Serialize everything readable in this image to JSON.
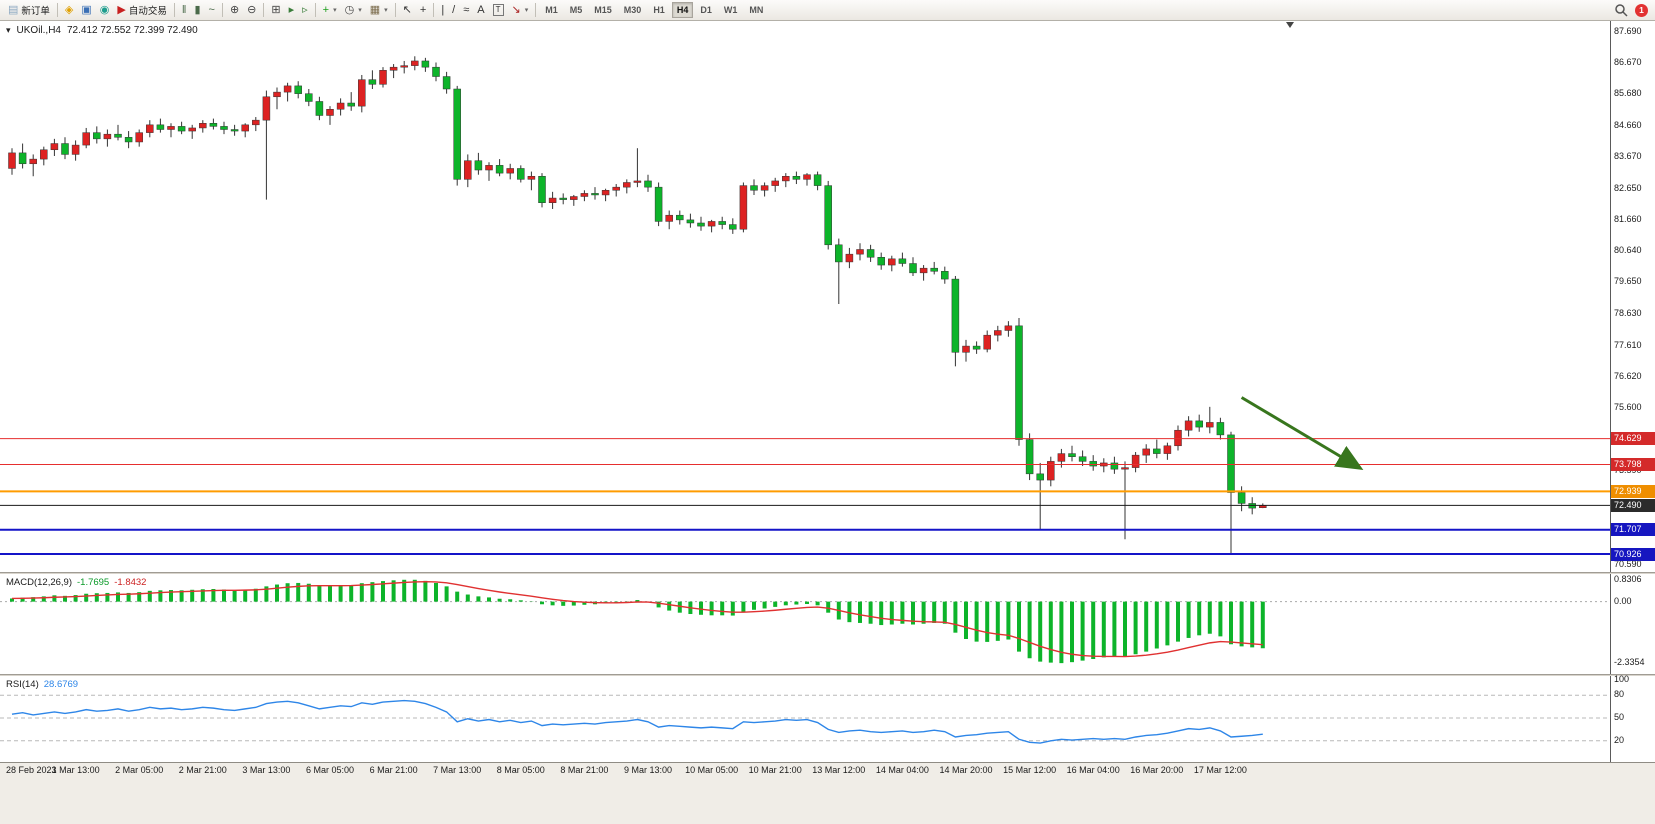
{
  "toolbar": {
    "caret_glyph": "▾",
    "notification_badge": "1",
    "groups": [
      {
        "items": [
          {
            "name": "new-order-button",
            "glyph": "▤",
            "glyph_color": "#8aa6c0",
            "label": "新订单"
          }
        ]
      },
      {
        "items": [
          {
            "name": "market-watch-icon",
            "glyph": "◈",
            "glyph_color": "#e0a000"
          },
          {
            "name": "metaeditor-icon",
            "glyph": "▣",
            "glyph_color": "#3b6fb5"
          },
          {
            "name": "signals-icon",
            "glyph": "◉",
            "glyph_color": "#1f9e8e"
          },
          {
            "name": "autotrading-button",
            "glyph": "▶",
            "glyph_color": "#c82020",
            "label": "自动交易"
          }
        ]
      },
      {
        "items": [
          {
            "name": "bar-chart-icon",
            "glyph": "‖",
            "glyph_color": "#4a6a4a"
          },
          {
            "name": "candlestick-chart-icon",
            "glyph": "▮",
            "glyph_color": "#4a6a4a"
          },
          {
            "name": "line-chart-icon",
            "glyph": "~",
            "glyph_color": "#4a6a4a"
          }
        ]
      },
      {
        "items": [
          {
            "name": "zoom-in-icon",
            "glyph": "⊕",
            "glyph_color": "#444444"
          },
          {
            "name": "zoom-out-icon",
            "glyph": "⊖",
            "glyph_color": "#444444"
          }
        ]
      },
      {
        "items": [
          {
            "name": "tile-windows-icon",
            "glyph": "⊞",
            "glyph_color": "#444444"
          },
          {
            "name": "auto-scroll-icon",
            "glyph": "▸",
            "glyph_color": "#3a7d3a"
          },
          {
            "name": "chart-shift-icon",
            "glyph": "▹",
            "glyph_color": "#3a7d3a"
          }
        ]
      },
      {
        "items": [
          {
            "name": "add-indicator-dropdown",
            "glyph": "+",
            "glyph_color": "#1a9e1a",
            "caret": true
          },
          {
            "name": "periods-dropdown",
            "glyph": "◷",
            "glyph_color": "#444444",
            "caret": true
          },
          {
            "name": "templates-dropdown",
            "glyph": "▦",
            "glyph_color": "#7a6a4a",
            "caret": true
          }
        ]
      },
      {
        "items": [
          {
            "name": "cursor-icon",
            "glyph": "↖",
            "glyph_color": "#333333"
          },
          {
            "name": "crosshair-icon",
            "glyph": "+",
            "glyph_color": "#333333"
          }
        ]
      },
      {
        "items": [
          {
            "name": "vertical-line-icon",
            "glyph": "|",
            "glyph_color": "#333333"
          },
          {
            "name": "trendline-icon",
            "glyph": "/",
            "glyph_color": "#333333"
          },
          {
            "name": "fibonacci-icon",
            "glyph": "≈",
            "glyph_color": "#333333"
          },
          {
            "name": "text-icon",
            "glyph": "A",
            "glyph_color": "#333333"
          },
          {
            "name": "label-icon",
            "glyph": "T",
            "glyph_color": "#333333",
            "boxed": true
          },
          {
            "name": "arrows-dropdown",
            "glyph": "↘",
            "glyph_color": "#aa2222",
            "caret": true
          }
        ]
      }
    ],
    "timeframes": {
      "items": [
        "M1",
        "M5",
        "M15",
        "M30",
        "H1",
        "H4",
        "D1",
        "W1",
        "MN"
      ],
      "active": "H4"
    }
  },
  "header": {
    "one_click_glyph": "▾",
    "symbol_period": "UKOil.,H4",
    "ohlc": "72.412 72.552 72.399 72.490"
  },
  "chart_data": {
    "type": "candlestick",
    "symbol": "UKOil",
    "period": "H4",
    "colors": {
      "up": "#dd2222",
      "down": "#0db42a",
      "wick": "#333333",
      "border": "#333333"
    },
    "y_axis": {
      "min": 70.35,
      "max": 88.0,
      "labels": [
        87.69,
        86.67,
        85.68,
        84.66,
        83.67,
        82.65,
        81.66,
        80.64,
        79.65,
        78.63,
        77.61,
        76.62,
        75.6,
        73.59,
        71.58,
        70.59
      ]
    },
    "price_lines": [
      {
        "value": 74.629,
        "color": "#e62e2e",
        "width": 1,
        "tag": "#d42a2a"
      },
      {
        "value": 73.798,
        "color": "#e62e2e",
        "width": 1,
        "tag": "#d42a2a"
      },
      {
        "value": 72.939,
        "color": "#ff9c00",
        "width": 2,
        "tag": "#ef8e00"
      },
      {
        "value": 72.49,
        "color": "#1a1a1a",
        "width": 1,
        "tag": "#2b2b2b"
      },
      {
        "value": 71.707,
        "color": "#1414c8",
        "width": 2,
        "tag": "#1616c0"
      },
      {
        "value": 70.926,
        "color": "#1414c8",
        "width": 2,
        "tag": "#1616c0"
      }
    ],
    "annotation": {
      "type": "arrow",
      "color": "#38761d",
      "width": 3,
      "from": {
        "index": 116,
        "price": 75.95
      },
      "to": {
        "index": 127,
        "price": 73.72
      }
    },
    "x_labels": [
      {
        "i": 0,
        "t": "28 Feb 2023"
      },
      {
        "i": 6,
        "t": "1 Mar 13:00"
      },
      {
        "i": 12,
        "t": "2 Mar 05:00"
      },
      {
        "i": 18,
        "t": "2 Mar 21:00"
      },
      {
        "i": 24,
        "t": "3 Mar 13:00"
      },
      {
        "i": 30,
        "t": "6 Mar 05:00"
      },
      {
        "i": 36,
        "t": "6 Mar 21:00"
      },
      {
        "i": 42,
        "t": "7 Mar 13:00"
      },
      {
        "i": 48,
        "t": "8 Mar 05:00"
      },
      {
        "i": 54,
        "t": "8 Mar 21:00"
      },
      {
        "i": 60,
        "t": "9 Mar 13:00"
      },
      {
        "i": 66,
        "t": "10 Mar 05:00"
      },
      {
        "i": 72,
        "t": "10 Mar 21:00"
      },
      {
        "i": 78,
        "t": "13 Mar 12:00"
      },
      {
        "i": 84,
        "t": "14 Mar 04:00"
      },
      {
        "i": 90,
        "t": "14 Mar 20:00"
      },
      {
        "i": 96,
        "t": "15 Mar 12:00"
      },
      {
        "i": 102,
        "t": "16 Mar 04:00"
      },
      {
        "i": 108,
        "t": "16 Mar 20:00"
      },
      {
        "i": 114,
        "t": "17 Mar 12:00"
      }
    ],
    "candles": [
      [
        83.3,
        83.95,
        83.1,
        83.8
      ],
      [
        83.8,
        84.1,
        83.3,
        83.45
      ],
      [
        83.45,
        83.75,
        83.05,
        83.6
      ],
      [
        83.6,
        84.0,
        83.4,
        83.9
      ],
      [
        83.9,
        84.25,
        83.7,
        84.1
      ],
      [
        84.1,
        84.3,
        83.6,
        83.75
      ],
      [
        83.75,
        84.2,
        83.55,
        84.05
      ],
      [
        84.05,
        84.6,
        83.95,
        84.45
      ],
      [
        84.45,
        84.65,
        84.1,
        84.25
      ],
      [
        84.25,
        84.55,
        84.0,
        84.4
      ],
      [
        84.4,
        84.7,
        84.2,
        84.3
      ],
      [
        84.3,
        84.5,
        83.95,
        84.15
      ],
      [
        84.15,
        84.55,
        84.0,
        84.45
      ],
      [
        84.45,
        84.85,
        84.3,
        84.7
      ],
      [
        84.7,
        84.9,
        84.45,
        84.55
      ],
      [
        84.55,
        84.75,
        84.3,
        84.65
      ],
      [
        84.65,
        84.8,
        84.4,
        84.5
      ],
      [
        84.5,
        84.7,
        84.25,
        84.6
      ],
      [
        84.6,
        84.85,
        84.45,
        84.75
      ],
      [
        84.75,
        84.9,
        84.55,
        84.65
      ],
      [
        84.65,
        84.8,
        84.4,
        84.55
      ],
      [
        84.55,
        84.7,
        84.35,
        84.5
      ],
      [
        84.5,
        84.75,
        84.3,
        84.7
      ],
      [
        84.7,
        84.95,
        84.5,
        84.85
      ],
      [
        84.85,
        85.8,
        82.3,
        85.6
      ],
      [
        85.6,
        85.9,
        85.2,
        85.75
      ],
      [
        85.75,
        86.05,
        85.45,
        85.95
      ],
      [
        85.95,
        86.1,
        85.55,
        85.7
      ],
      [
        85.7,
        85.85,
        85.3,
        85.45
      ],
      [
        85.45,
        85.6,
        84.85,
        85.0
      ],
      [
        85.0,
        85.3,
        84.7,
        85.2
      ],
      [
        85.2,
        85.55,
        85.0,
        85.4
      ],
      [
        85.4,
        85.75,
        85.15,
        85.3
      ],
      [
        85.3,
        86.3,
        85.1,
        86.15
      ],
      [
        86.15,
        86.45,
        85.85,
        86.0
      ],
      [
        86.0,
        86.55,
        85.9,
        86.45
      ],
      [
        86.45,
        86.65,
        86.2,
        86.55
      ],
      [
        86.55,
        86.75,
        86.35,
        86.6
      ],
      [
        86.6,
        86.9,
        86.45,
        86.75
      ],
      [
        86.75,
        86.85,
        86.4,
        86.55
      ],
      [
        86.55,
        86.7,
        86.1,
        86.25
      ],
      [
        86.25,
        86.4,
        85.7,
        85.85
      ],
      [
        85.85,
        85.95,
        82.75,
        82.95
      ],
      [
        82.95,
        83.75,
        82.7,
        83.55
      ],
      [
        83.55,
        83.8,
        83.1,
        83.25
      ],
      [
        83.25,
        83.5,
        82.9,
        83.4
      ],
      [
        83.4,
        83.6,
        83.05,
        83.15
      ],
      [
        83.15,
        83.45,
        82.95,
        83.3
      ],
      [
        83.3,
        83.4,
        82.85,
        82.95
      ],
      [
        82.95,
        83.2,
        82.6,
        83.05
      ],
      [
        83.05,
        83.15,
        82.05,
        82.2
      ],
      [
        82.2,
        82.55,
        82.0,
        82.35
      ],
      [
        82.35,
        82.5,
        82.15,
        82.3
      ],
      [
        82.3,
        82.45,
        82.1,
        82.4
      ],
      [
        82.4,
        82.6,
        82.25,
        82.5
      ],
      [
        82.5,
        82.7,
        82.3,
        82.45
      ],
      [
        82.45,
        82.65,
        82.25,
        82.6
      ],
      [
        82.6,
        82.8,
        82.4,
        82.7
      ],
      [
        82.7,
        82.95,
        82.5,
        82.85
      ],
      [
        82.85,
        83.95,
        82.7,
        82.9
      ],
      [
        82.9,
        83.1,
        82.55,
        82.7
      ],
      [
        82.7,
        82.85,
        81.45,
        81.6
      ],
      [
        81.6,
        81.95,
        81.35,
        81.8
      ],
      [
        81.8,
        81.95,
        81.5,
        81.65
      ],
      [
        81.65,
        81.85,
        81.4,
        81.55
      ],
      [
        81.55,
        81.75,
        81.3,
        81.45
      ],
      [
        81.45,
        81.65,
        81.25,
        81.6
      ],
      [
        81.6,
        81.75,
        81.35,
        81.5
      ],
      [
        81.5,
        81.7,
        81.2,
        81.35
      ],
      [
        81.35,
        82.85,
        81.25,
        82.75
      ],
      [
        82.75,
        82.95,
        82.45,
        82.6
      ],
      [
        82.6,
        82.85,
        82.4,
        82.75
      ],
      [
        82.75,
        83.0,
        82.55,
        82.9
      ],
      [
        82.9,
        83.15,
        82.7,
        83.05
      ],
      [
        83.05,
        83.2,
        82.8,
        82.95
      ],
      [
        82.95,
        83.15,
        82.75,
        83.1
      ],
      [
        83.1,
        83.2,
        82.6,
        82.75
      ],
      [
        82.75,
        82.9,
        80.7,
        80.85
      ],
      [
        80.85,
        81.05,
        78.95,
        80.3
      ],
      [
        80.3,
        80.75,
        80.1,
        80.55
      ],
      [
        80.55,
        80.9,
        80.35,
        80.7
      ],
      [
        80.7,
        80.85,
        80.3,
        80.45
      ],
      [
        80.45,
        80.6,
        80.05,
        80.2
      ],
      [
        80.2,
        80.5,
        80.0,
        80.4
      ],
      [
        80.4,
        80.6,
        80.15,
        80.25
      ],
      [
        80.25,
        80.45,
        79.85,
        79.95
      ],
      [
        79.95,
        80.2,
        79.7,
        80.1
      ],
      [
        80.1,
        80.3,
        79.9,
        80.0
      ],
      [
        80.0,
        80.15,
        79.6,
        79.75
      ],
      [
        79.75,
        79.85,
        76.95,
        77.4
      ],
      [
        77.4,
        77.8,
        77.1,
        77.6
      ],
      [
        77.6,
        77.75,
        77.35,
        77.5
      ],
      [
        77.5,
        78.1,
        77.4,
        77.95
      ],
      [
        77.95,
        78.25,
        77.75,
        78.1
      ],
      [
        78.1,
        78.4,
        77.9,
        78.25
      ],
      [
        78.25,
        78.5,
        74.4,
        74.6
      ],
      [
        74.6,
        74.8,
        73.3,
        73.5
      ],
      [
        73.5,
        73.85,
        71.7,
        73.3
      ],
      [
        73.3,
        74.05,
        73.1,
        73.9
      ],
      [
        73.9,
        74.3,
        73.7,
        74.15
      ],
      [
        74.15,
        74.4,
        73.9,
        74.05
      ],
      [
        74.05,
        74.25,
        73.75,
        73.9
      ],
      [
        73.9,
        74.1,
        73.6,
        73.75
      ],
      [
        73.75,
        74.0,
        73.55,
        73.85
      ],
      [
        73.85,
        74.05,
        73.5,
        73.65
      ],
      [
        73.65,
        73.9,
        71.4,
        73.7
      ],
      [
        73.7,
        74.2,
        73.55,
        74.1
      ],
      [
        74.1,
        74.45,
        73.85,
        74.3
      ],
      [
        74.3,
        74.6,
        74.0,
        74.15
      ],
      [
        74.15,
        74.5,
        73.95,
        74.4
      ],
      [
        74.4,
        75.05,
        74.25,
        74.9
      ],
      [
        74.9,
        75.35,
        74.7,
        75.2
      ],
      [
        75.2,
        75.4,
        74.85,
        75.0
      ],
      [
        75.0,
        75.65,
        74.8,
        75.15
      ],
      [
        75.15,
        75.3,
        74.6,
        74.75
      ],
      [
        74.75,
        74.85,
        70.93,
        72.9
      ],
      [
        72.9,
        73.1,
        72.3,
        72.55
      ],
      [
        72.55,
        72.75,
        72.2,
        72.4
      ],
      [
        72.412,
        72.552,
        72.399,
        72.49
      ]
    ]
  },
  "macd": {
    "label": "MACD(12,26,9)",
    "main_value": "-1.7695",
    "signal_value": "-1.8432",
    "range": [
      -2.75,
      1.05
    ],
    "scale_labels": [
      {
        "text": "0.8306",
        "value": 0.8306
      },
      {
        "text": "0.00",
        "value": 0
      },
      {
        "text": "-2.3354",
        "value": -2.3354
      }
    ],
    "colors": {
      "histogram": "#0db42a",
      "signal": "#e03131"
    },
    "histogram": [
      0.12,
      0.15,
      0.17,
      0.2,
      0.24,
      0.22,
      0.25,
      0.3,
      0.32,
      0.33,
      0.35,
      0.33,
      0.36,
      0.41,
      0.43,
      0.44,
      0.43,
      0.45,
      0.47,
      0.48,
      0.46,
      0.44,
      0.46,
      0.49,
      0.58,
      0.65,
      0.7,
      0.71,
      0.68,
      0.63,
      0.6,
      0.61,
      0.63,
      0.7,
      0.74,
      0.78,
      0.81,
      0.83,
      0.8306,
      0.79,
      0.71,
      0.58,
      0.38,
      0.27,
      0.2,
      0.16,
      0.11,
      0.09,
      0.05,
      0.01,
      -0.1,
      -0.14,
      -0.16,
      -0.15,
      -0.12,
      -0.1,
      -0.07,
      -0.04,
      0.01,
      0.06,
      -0.03,
      -0.22,
      -0.34,
      -0.42,
      -0.47,
      -0.5,
      -0.52,
      -0.52,
      -0.53,
      -0.4,
      -0.31,
      -0.26,
      -0.2,
      -0.14,
      -0.11,
      -0.09,
      -0.14,
      -0.42,
      -0.68,
      -0.78,
      -0.81,
      -0.84,
      -0.89,
      -0.87,
      -0.84,
      -0.87,
      -0.84,
      -0.81,
      -0.84,
      -1.18,
      -1.42,
      -1.52,
      -1.53,
      -1.49,
      -1.44,
      -1.9,
      -2.15,
      -2.28,
      -2.32,
      -2.3354,
      -2.3,
      -2.24,
      -2.18,
      -2.12,
      -2.08,
      -2.1,
      -2.0,
      -1.9,
      -1.78,
      -1.66,
      -1.52,
      -1.38,
      -1.28,
      -1.22,
      -1.32,
      -1.62,
      -1.7,
      -1.74,
      -1.7695
    ]
  },
  "rsi": {
    "label": "RSI(14)",
    "value": "28.6769",
    "color": "#2e86e8",
    "range": [
      0,
      100
    ],
    "levels": [
      80,
      50,
      20
    ],
    "scale_labels": [
      {
        "text": "100",
        "value": 100
      },
      {
        "text": "80",
        "value": 80
      },
      {
        "text": "50",
        "value": 50
      },
      {
        "text": "20",
        "value": 20
      }
    ],
    "values": [
      55,
      57,
      54,
      56,
      58,
      56,
      58,
      61,
      59,
      60,
      62,
      59,
      61,
      64,
      62,
      63,
      61,
      62,
      64,
      63,
      61,
      60,
      62,
      64,
      69,
      71,
      72,
      70,
      66,
      62,
      64,
      66,
      65,
      70,
      68,
      71,
      72,
      73,
      72,
      69,
      64,
      58,
      45,
      49,
      46,
      48,
      45,
      47,
      44,
      46,
      40,
      42,
      41,
      42,
      43,
      42,
      44,
      45,
      46,
      48,
      45,
      38,
      40,
      39,
      38,
      37,
      38,
      37,
      36,
      45,
      44,
      45,
      46,
      48,
      47,
      48,
      44,
      35,
      31,
      33,
      34,
      32,
      31,
      32,
      33,
      31,
      32,
      34,
      32,
      25,
      27,
      28,
      30,
      31,
      32,
      22,
      18,
      17,
      20,
      22,
      21,
      22,
      23,
      22,
      23,
      22,
      25,
      27,
      28,
      30,
      33,
      36,
      35,
      37,
      33,
      25,
      26,
      27,
      28.68
    ]
  }
}
